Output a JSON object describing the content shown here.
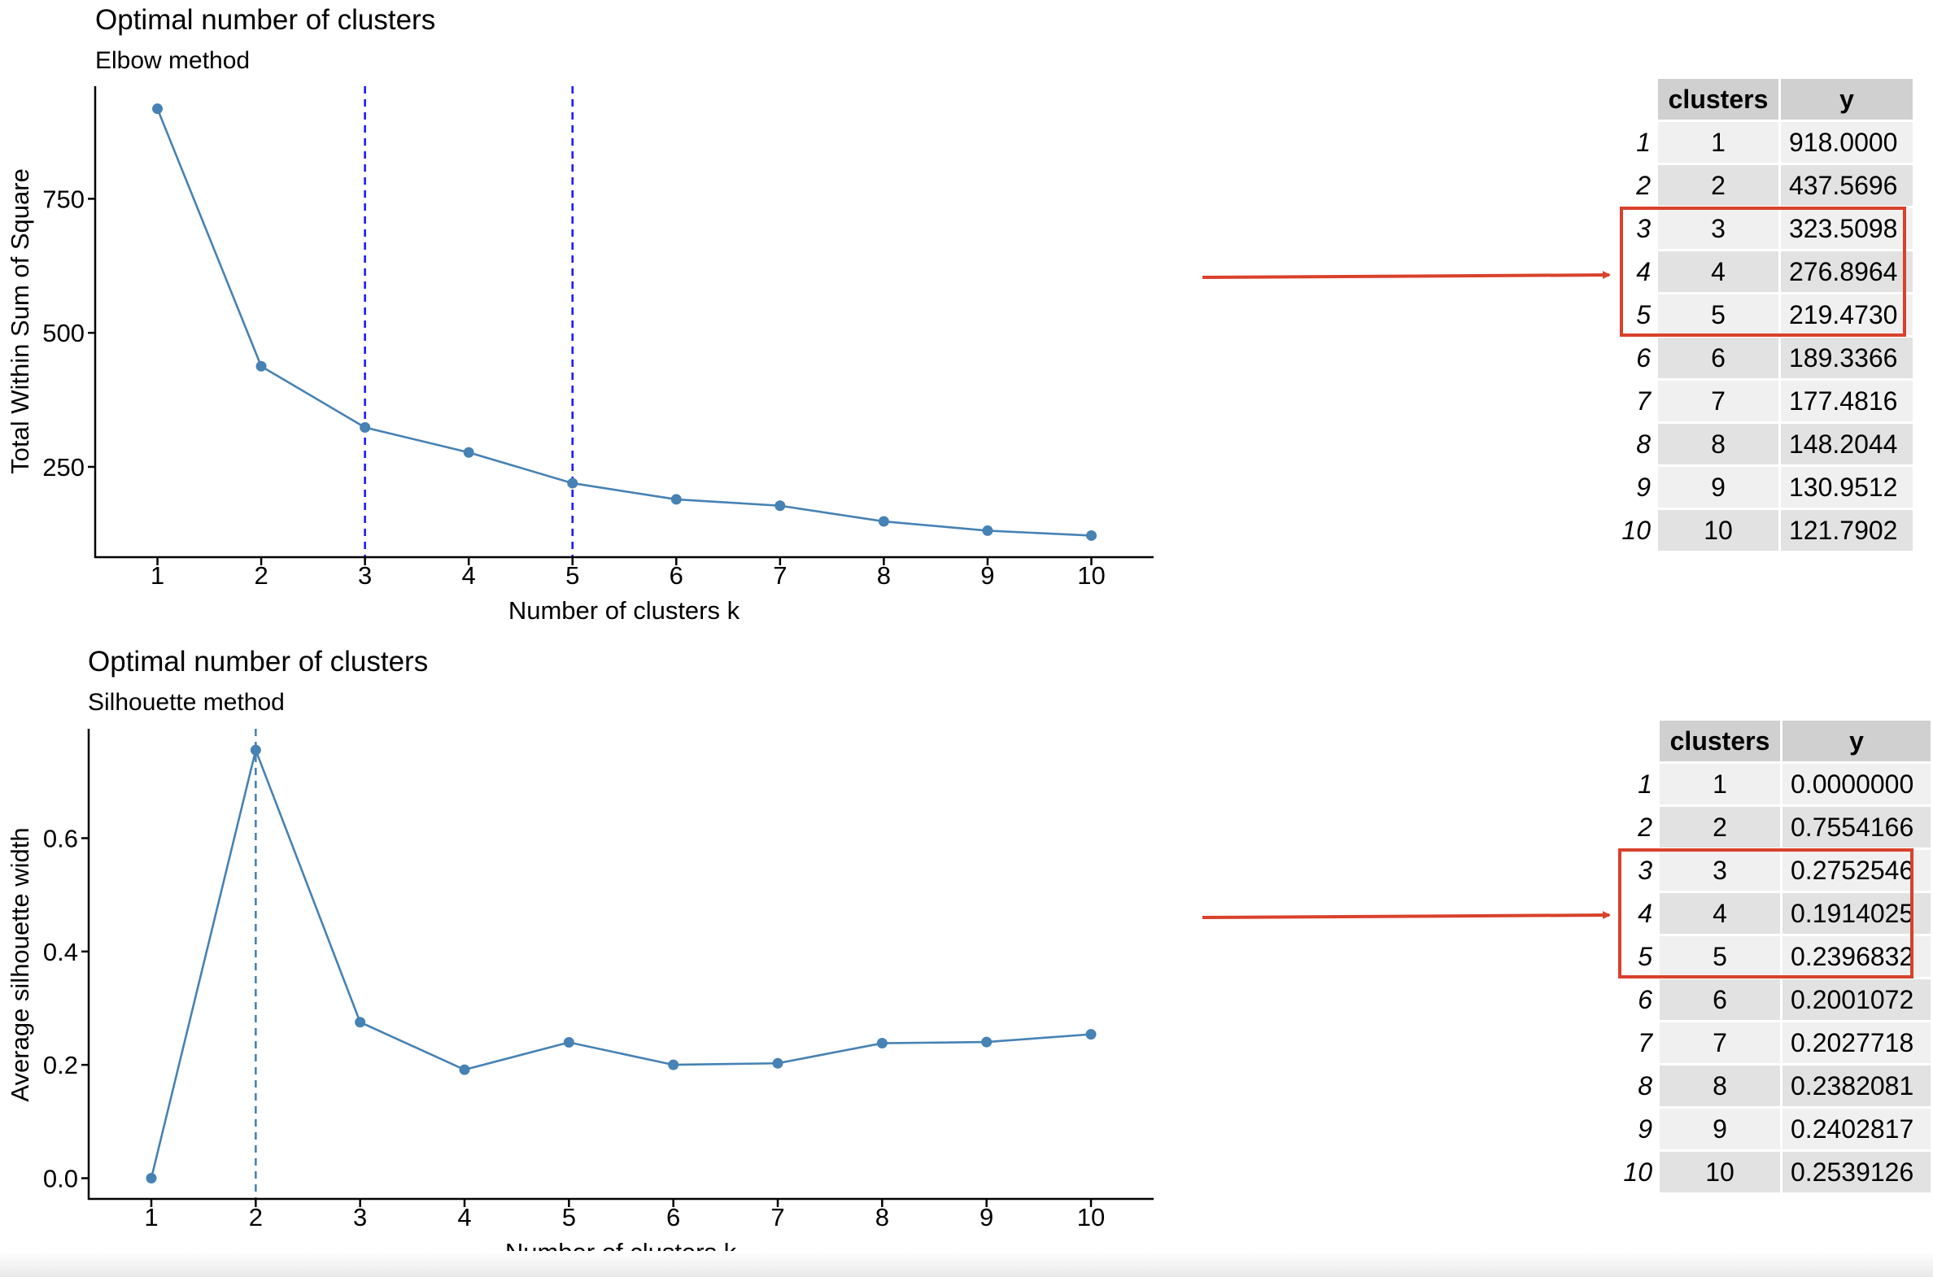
{
  "chart_data": [
    {
      "type": "line",
      "title": "Optimal number of clusters",
      "subtitle": "Elbow method",
      "xlabel": "Number of clusters k",
      "ylabel": "Total Within Sum of Square",
      "x": [
        1,
        2,
        3,
        4,
        5,
        6,
        7,
        8,
        9,
        10
      ],
      "values": [
        918.0,
        437.5696,
        323.5098,
        276.8964,
        219.473,
        189.3366,
        177.4816,
        148.2044,
        130.9512,
        121.7902
      ],
      "xlim": [
        0.4,
        10.6
      ],
      "ylim": [
        80,
        960
      ],
      "yticks": [
        250,
        500,
        750
      ],
      "vlines": [
        3,
        5
      ],
      "line_color": "#4682b4",
      "vline_color": "#1a1aff",
      "grid": false
    },
    {
      "type": "line",
      "title": "Optimal number of clusters",
      "subtitle": "Silhouette method",
      "xlabel": "Number of clusters k",
      "ylabel": "Average silhouette width",
      "x": [
        1,
        2,
        3,
        4,
        5,
        6,
        7,
        8,
        9,
        10
      ],
      "values": [
        0.0,
        0.7554166,
        0.2752546,
        0.1914025,
        0.2396832,
        0.2001072,
        0.2027718,
        0.2382081,
        0.2402817,
        0.2539126
      ],
      "xlim": [
        0.4,
        10.6
      ],
      "ylim": [
        -0.038,
        0.793
      ],
      "yticks": [
        0.0,
        0.2,
        0.4,
        0.6
      ],
      "ytick_labels": [
        "0.0",
        "0.2",
        "0.4",
        "0.6"
      ],
      "vlines": [
        2
      ],
      "line_color": "#4682b4",
      "vline_color": "#4682b4",
      "grid": false
    }
  ],
  "tables": [
    {
      "headers": [
        "clusters",
        "y"
      ],
      "rows": [
        [
          "1",
          "1",
          "918.0000"
        ],
        [
          "2",
          "2",
          "437.5696"
        ],
        [
          "3",
          "3",
          "323.5098"
        ],
        [
          "4",
          "4",
          "276.8964"
        ],
        [
          "5",
          "5",
          "219.4730"
        ],
        [
          "6",
          "6",
          "189.3366"
        ],
        [
          "7",
          "7",
          "177.4816"
        ],
        [
          "8",
          "8",
          "148.2044"
        ],
        [
          "9",
          "9",
          "130.9512"
        ],
        [
          "10",
          "10",
          "121.7902"
        ]
      ],
      "highlighted_rows": [
        3,
        4,
        5
      ]
    },
    {
      "headers": [
        "clusters",
        "y"
      ],
      "rows": [
        [
          "1",
          "1",
          "0.0000000"
        ],
        [
          "2",
          "2",
          "0.7554166"
        ],
        [
          "3",
          "3",
          "0.2752546"
        ],
        [
          "4",
          "4",
          "0.1914025"
        ],
        [
          "5",
          "5",
          "0.2396832"
        ],
        [
          "6",
          "6",
          "0.2001072"
        ],
        [
          "7",
          "7",
          "0.2027718"
        ],
        [
          "8",
          "8",
          "0.2382081"
        ],
        [
          "9",
          "9",
          "0.2402817"
        ],
        [
          "10",
          "10",
          "0.2539126"
        ]
      ],
      "highlighted_rows": [
        3,
        4,
        5
      ]
    }
  ],
  "annotations": {
    "arrow_color": "#d9412b",
    "highlight_color": "#d9412b"
  }
}
